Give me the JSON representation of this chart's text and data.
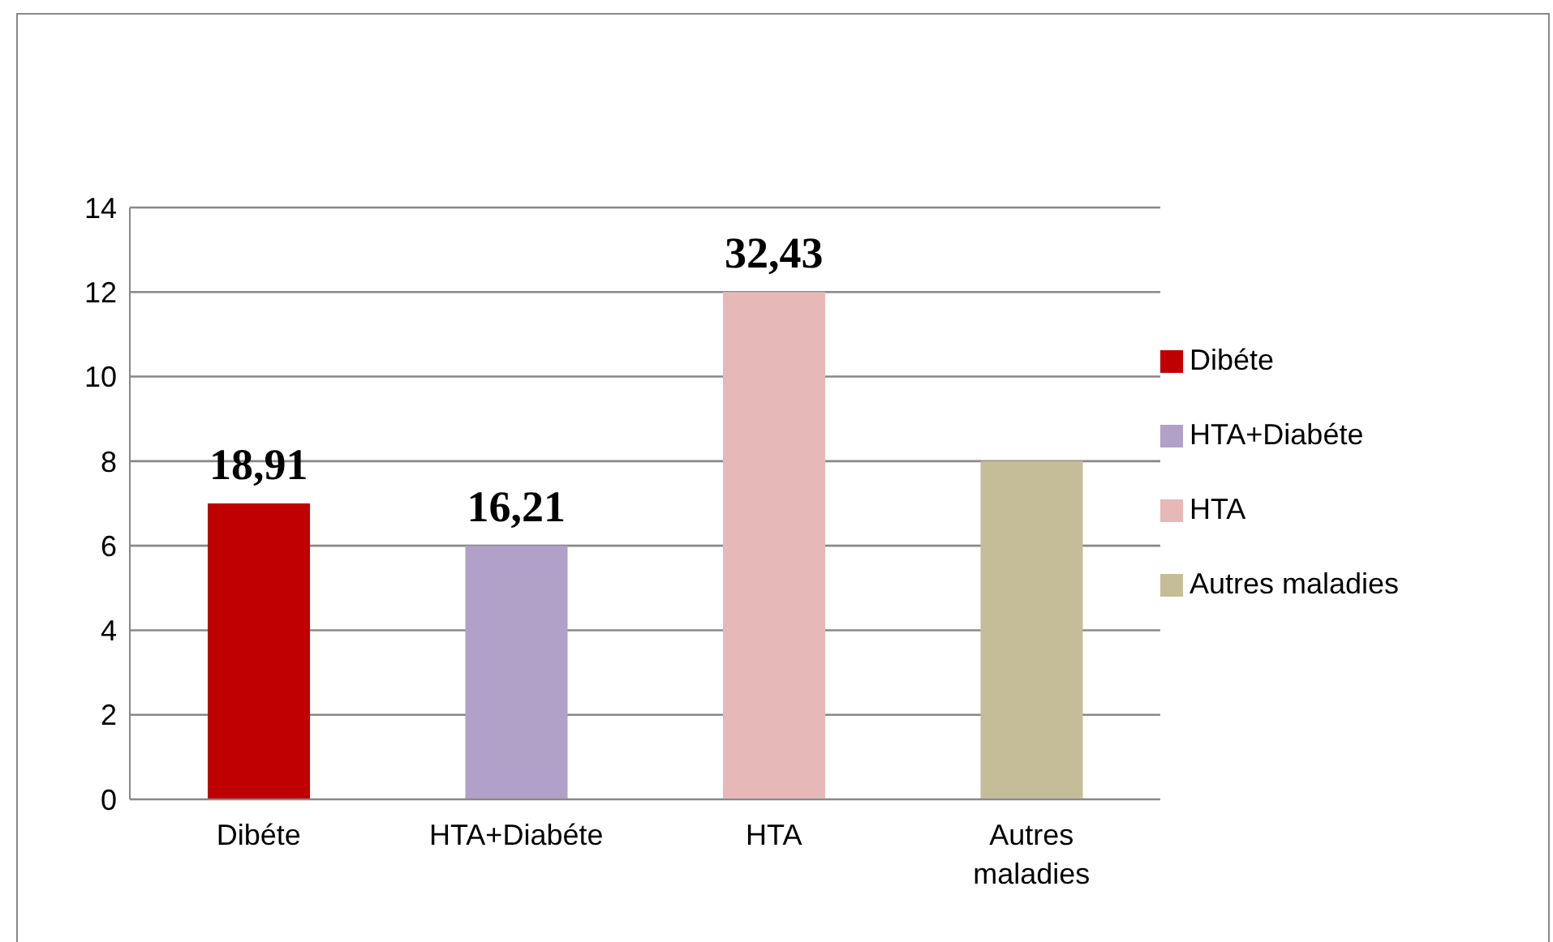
{
  "chart_data": {
    "type": "bar",
    "stacked": true,
    "categories": [
      "Dibéte",
      "HTA+Diabéte",
      "HTA",
      "Autres maladies"
    ],
    "series": [
      {
        "name": "Dibéte",
        "color": "#c00000",
        "values": [
          7,
          null,
          null,
          null
        ]
      },
      {
        "name": "HTA+Diabéte",
        "color": "#b1a0c7",
        "values": [
          null,
          6,
          null,
          null
        ]
      },
      {
        "name": "HTA",
        "color": "#e6b9b8",
        "values": [
          null,
          null,
          12,
          null
        ]
      },
      {
        "name": "Autres maladies",
        "color": "#c4bd97",
        "values": [
          null,
          null,
          null,
          8
        ]
      }
    ],
    "annotations": [
      {
        "text": "18,91",
        "x": "Dibéte",
        "y": 7
      },
      {
        "text": "16,21",
        "x": "HTA+Diabéte",
        "y": 6
      },
      {
        "text": "32,43",
        "x": "HTA",
        "y": 12
      }
    ],
    "ylim": [
      0,
      14
    ],
    "yticks": [
      0,
      2,
      4,
      6,
      8,
      10,
      12,
      14
    ],
    "grid": "y",
    "legend": "right"
  }
}
